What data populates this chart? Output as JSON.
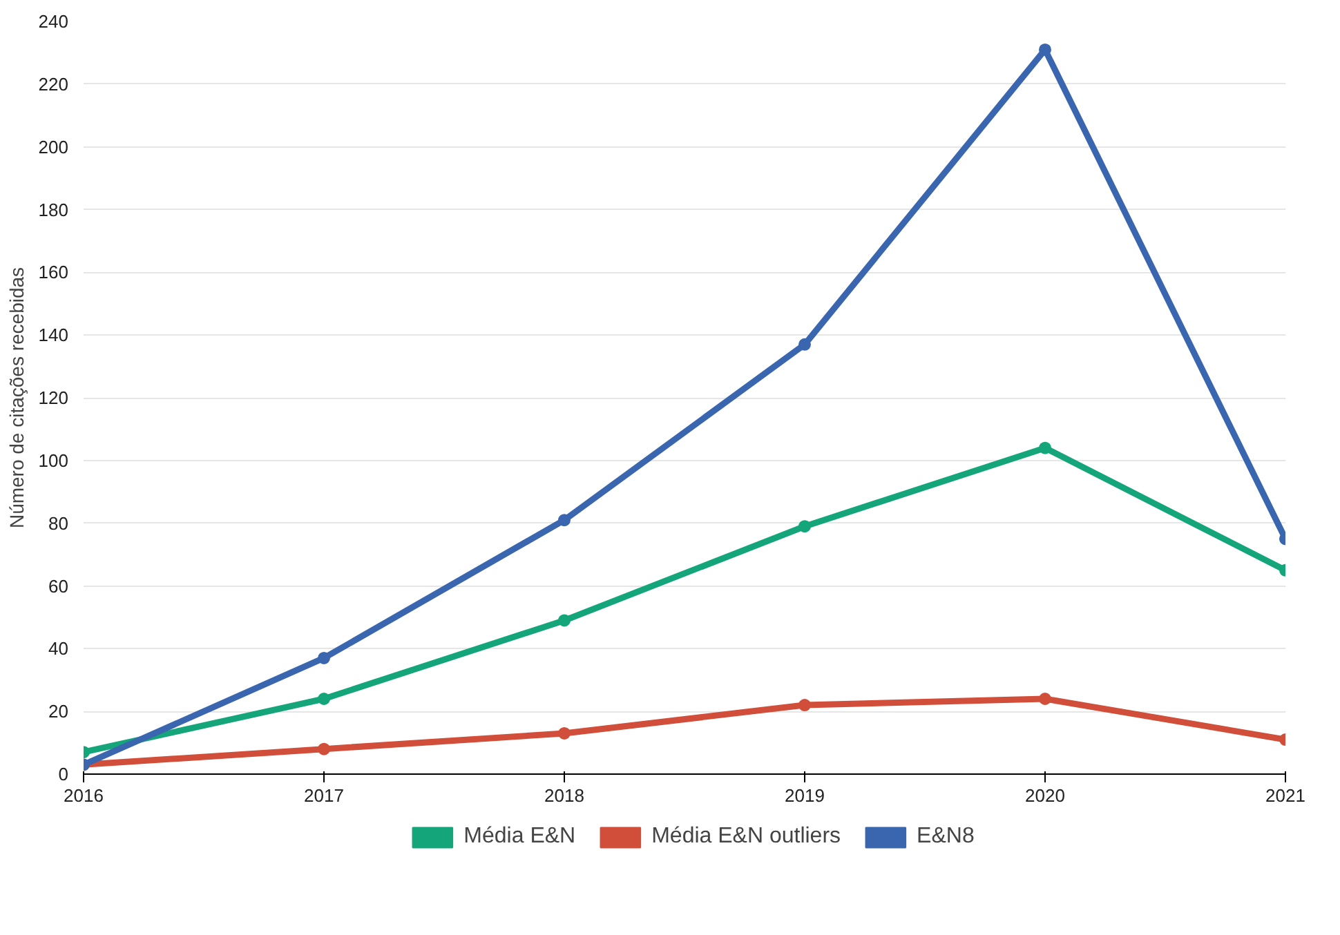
{
  "chart_data": {
    "type": "line",
    "ylabel": "Número de citações recebidas",
    "x": [
      2016,
      2017,
      2018,
      2019,
      2020,
      2021
    ],
    "xlim": [
      2016,
      2021
    ],
    "xticks": [
      2016,
      2017,
      2018,
      2019,
      2020,
      2021
    ],
    "ylim": [
      0,
      240
    ],
    "yticks": [
      0,
      20,
      40,
      60,
      80,
      100,
      120,
      140,
      160,
      180,
      200,
      220,
      240
    ],
    "grid": "y",
    "legend": "bottom",
    "marker": "circle",
    "line_style": "solid",
    "series": [
      {
        "name": "Média E&N",
        "color": "#14a67a",
        "values": [
          7,
          24,
          49,
          79,
          104,
          65
        ]
      },
      {
        "name": "Média E&N outliers",
        "color": "#d14f3a",
        "values": [
          3,
          8,
          13,
          22,
          24,
          11
        ]
      },
      {
        "name": "E&N8",
        "color": "#3a66b0",
        "values": [
          3,
          37,
          81,
          137,
          231,
          75
        ]
      }
    ]
  }
}
